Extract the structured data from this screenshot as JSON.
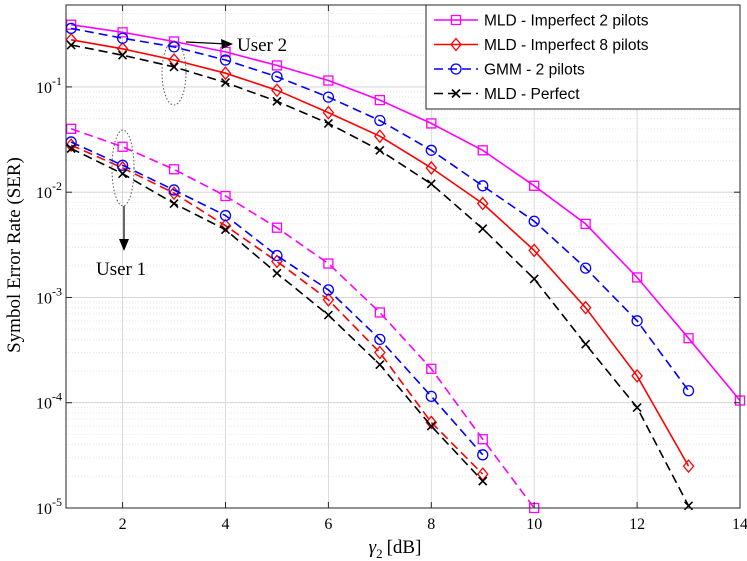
{
  "chart_data": {
    "type": "line",
    "xlabel_symbol": "γ",
    "xlabel_subscript": "2",
    "xlabel_unit": "[dB]",
    "ylabel": "Symbol Error Rate (SER)",
    "xlim": [
      0.9,
      14
    ],
    "ylim": [
      1e-05,
      0.6
    ],
    "yscale": "log",
    "grid": true,
    "legend_position": "top-right",
    "x_ticks": [
      {
        "value": 2,
        "label": "2"
      },
      {
        "value": 4,
        "label": "4"
      },
      {
        "value": 6,
        "label": "6"
      },
      {
        "value": 8,
        "label": "8"
      },
      {
        "value": 10,
        "label": "10"
      },
      {
        "value": 12,
        "label": "12"
      },
      {
        "value": 14,
        "label": "14"
      }
    ],
    "y_ticks": [
      {
        "value": 0.1,
        "base": "10",
        "exp": "-1"
      },
      {
        "value": 0.01,
        "base": "10",
        "exp": "-2"
      },
      {
        "value": 0.001,
        "base": "10",
        "exp": "-3"
      },
      {
        "value": 0.0001,
        "base": "10",
        "exp": "-4"
      },
      {
        "value": 1e-05,
        "base": "10",
        "exp": "-5"
      }
    ],
    "annotations": [
      {
        "text": "User 2",
        "target_x": 3,
        "target_y": 0.22
      },
      {
        "text": "User 1",
        "target_x": 2,
        "target_y": 0.022
      }
    ],
    "series": [
      {
        "name": "MLD - Imperfect 2 pilots",
        "user": "User 2",
        "color": "#ff00ff",
        "dash": "solid",
        "marker": "square",
        "legend": true,
        "x": [
          1,
          2,
          3,
          4,
          5,
          6,
          7,
          8,
          9,
          10,
          11,
          12,
          13,
          14
        ],
        "y": [
          0.39,
          0.33,
          0.27,
          0.215,
          0.16,
          0.115,
          0.075,
          0.045,
          0.025,
          0.0115,
          0.005,
          0.00155,
          0.00041,
          0.000105
        ]
      },
      {
        "name": "MLD - Imperfect 8 pilots",
        "user": "User 2",
        "color": "#ff0000",
        "dash": "solid",
        "marker": "diamond",
        "legend": true,
        "x": [
          1,
          2,
          3,
          4,
          5,
          6,
          7,
          8,
          9,
          10,
          11,
          12,
          13
        ],
        "y": [
          0.28,
          0.23,
          0.18,
          0.135,
          0.093,
          0.057,
          0.034,
          0.017,
          0.0078,
          0.0028,
          0.0008,
          0.00018,
          2.5e-05
        ]
      },
      {
        "name": "GMM -  2 pilots",
        "user": "User 2",
        "color": "#0000ff",
        "dash": "dashed",
        "marker": "circle",
        "legend": true,
        "x": [
          1,
          2,
          3,
          4,
          5,
          6,
          7,
          8,
          9,
          10,
          11,
          12,
          13
        ],
        "y": [
          0.36,
          0.29,
          0.24,
          0.18,
          0.125,
          0.08,
          0.048,
          0.025,
          0.0115,
          0.0053,
          0.0019,
          0.0006,
          0.00013
        ]
      },
      {
        "name": "MLD - Perfect",
        "user": "User 2",
        "color": "#000000",
        "dash": "dashed",
        "marker": "x",
        "legend": true,
        "x": [
          1,
          2,
          3,
          4,
          5,
          6,
          7,
          8,
          9,
          10,
          11,
          12,
          13
        ],
        "y": [
          0.25,
          0.2,
          0.155,
          0.11,
          0.073,
          0.045,
          0.025,
          0.012,
          0.0045,
          0.0015,
          0.00036,
          9e-05,
          1.05e-05
        ]
      },
      {
        "name": "MLD - Imperfect 2 pilots",
        "user": "User 1",
        "color": "#ff00ff",
        "dash": "dashed",
        "marker": "square",
        "legend": false,
        "x": [
          1,
          2,
          3,
          4,
          5,
          6,
          7,
          8,
          9,
          10
        ],
        "y": [
          0.04,
          0.027,
          0.0165,
          0.0092,
          0.0046,
          0.0021,
          0.00072,
          0.00021,
          4.5e-05,
          1e-05
        ]
      },
      {
        "name": "MLD - Imperfect 8 pilots",
        "user": "User 1",
        "color": "#ff0000",
        "dash": "dashed",
        "marker": "diamond",
        "legend": false,
        "x": [
          1,
          2,
          3,
          4,
          5,
          6,
          7,
          8,
          9
        ],
        "y": [
          0.028,
          0.017,
          0.0098,
          0.0048,
          0.0022,
          0.00095,
          0.0003,
          6.5e-05,
          2.1e-05
        ]
      },
      {
        "name": "GMM -  2 pilots",
        "user": "User 1",
        "color": "#0000ff",
        "dash": "dashed",
        "marker": "circle",
        "legend": false,
        "x": [
          1,
          2,
          3,
          4,
          5,
          6,
          7,
          8,
          9
        ],
        "y": [
          0.03,
          0.018,
          0.0105,
          0.006,
          0.0025,
          0.00118,
          0.0004,
          0.000115,
          3.2e-05
        ]
      },
      {
        "name": "MLD - Perfect",
        "user": "User 1",
        "color": "#000000",
        "dash": "dashed",
        "marker": "x",
        "legend": false,
        "x": [
          1,
          2,
          3,
          4,
          5,
          6,
          7,
          8,
          9
        ],
        "y": [
          0.026,
          0.015,
          0.0078,
          0.0044,
          0.0017,
          0.00068,
          0.00023,
          6e-05,
          1.8e-05
        ]
      }
    ]
  }
}
